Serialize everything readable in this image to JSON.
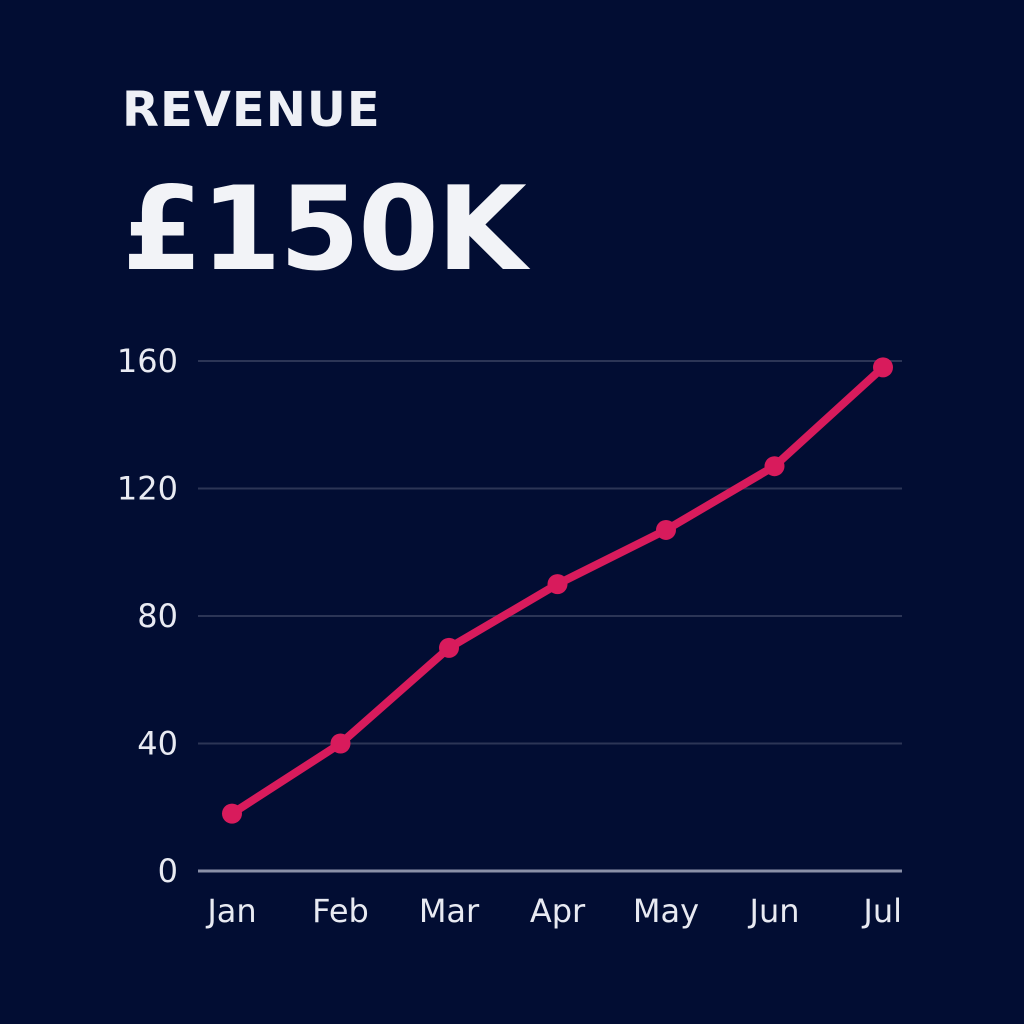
{
  "kpi": {
    "label": "REVENUE",
    "value": "£150K"
  },
  "colors": {
    "background": "#020d33",
    "line": "#d81b5c",
    "grid": "#2c3556",
    "axis": "#8a90a8",
    "text": "#eef0f6"
  },
  "chart_data": {
    "type": "line",
    "categories": [
      "Jan",
      "Feb",
      "Mar",
      "Apr",
      "May",
      "Jun",
      "Jul"
    ],
    "series": [
      {
        "values": [
          18,
          40,
          70,
          90,
          107,
          127,
          158
        ]
      }
    ],
    "yticks": [
      "0",
      "40",
      "80",
      "120",
      "160"
    ],
    "ylim": [
      0,
      160
    ],
    "grid": true,
    "markers": true
  }
}
